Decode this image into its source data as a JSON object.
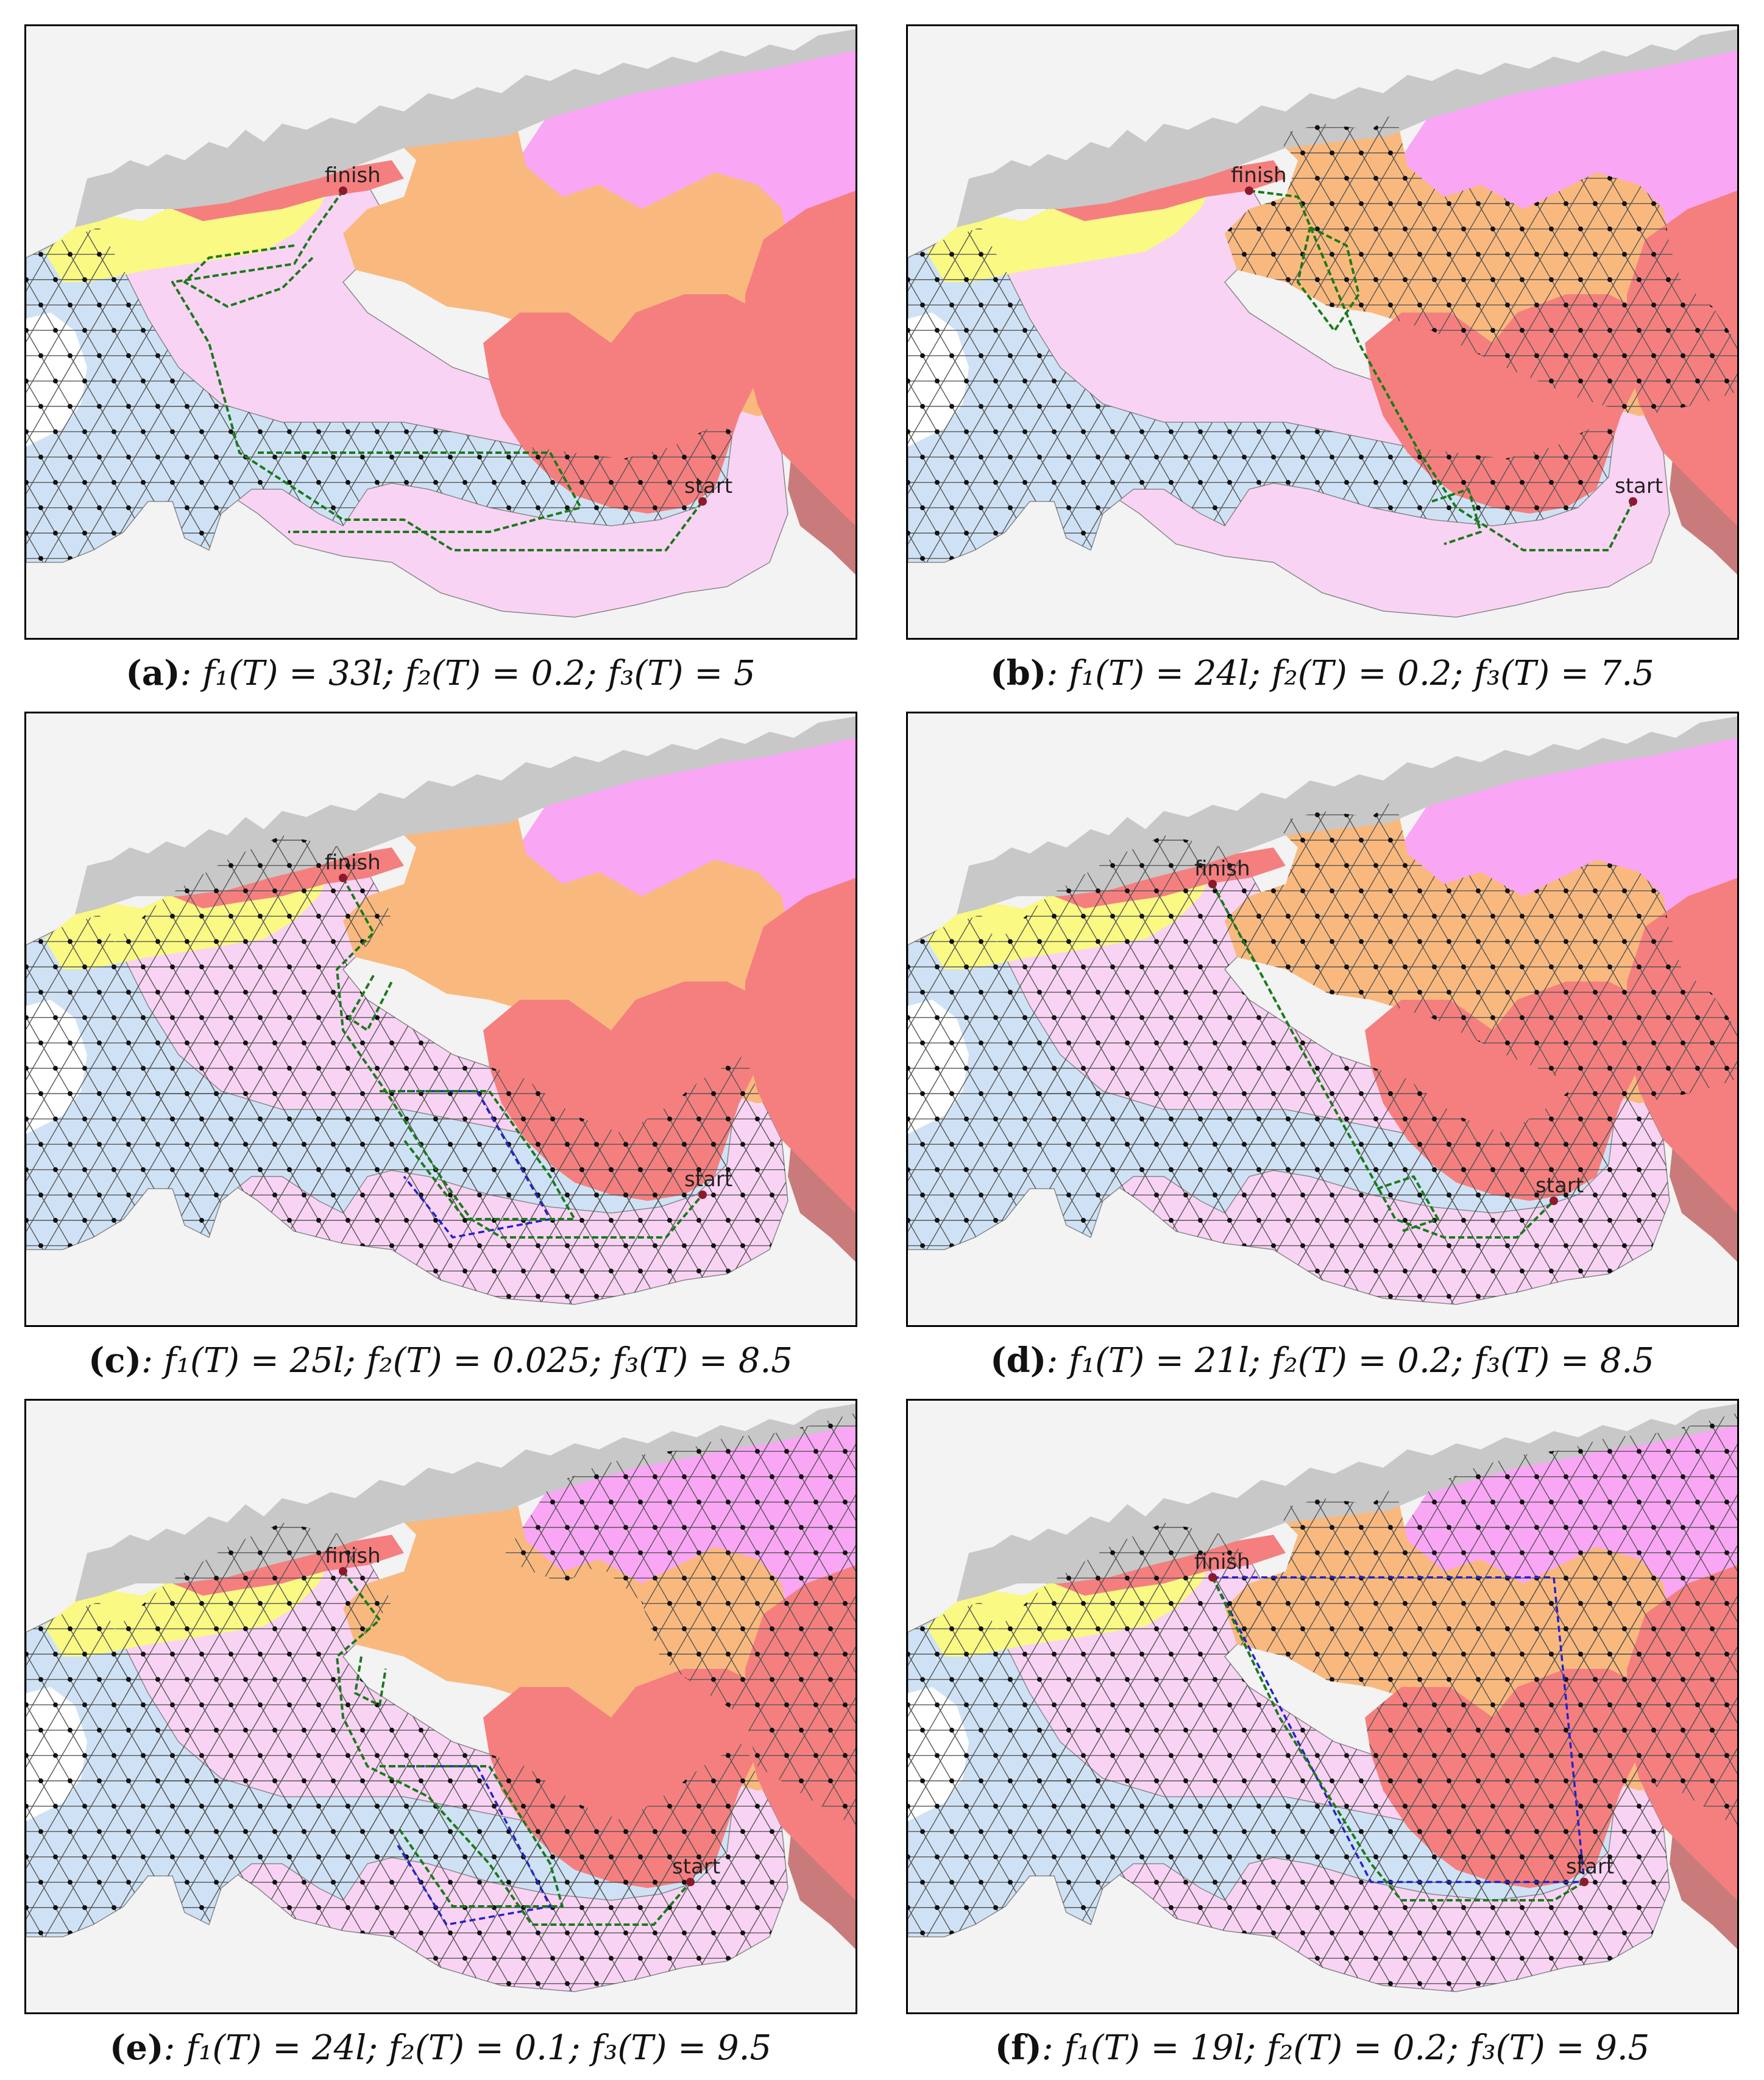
{
  "panels": [
    {
      "id": "a",
      "caption_label": "(a)",
      "caption_text": ": f₁(T) = 33l; f₂(T) = 0.2; f₃(T) = 5",
      "start_label": "start",
      "finish_label": "finish",
      "grid_regions": [
        "blue"
      ],
      "highlight": "none"
    },
    {
      "id": "b",
      "caption_label": "(b)",
      "caption_text": ": f₁(T) = 24l; f₂(T) = 0.2; f₃(T) = 7.5",
      "start_label": "start",
      "finish_label": "finish",
      "grid_regions": [
        "blue",
        "orange"
      ],
      "highlight": "none"
    },
    {
      "id": "c",
      "caption_label": "(c)",
      "caption_text": ": f₁(T) = 25l; f₂(T) = 0.025; f₃(T) = 8.5",
      "start_label": "start",
      "finish_label": "finish",
      "grid_regions": [
        "blue",
        "lightpink"
      ],
      "highlight": "none"
    },
    {
      "id": "d",
      "caption_label": "(d)",
      "caption_text": ": f₁(T) = 21l; f₂(T) = 0.2; f₃(T) = 8.5",
      "start_label": "start",
      "finish_label": "finish",
      "grid_regions": [
        "blue",
        "lightpink",
        "orange"
      ],
      "highlight": "none"
    },
    {
      "id": "e",
      "caption_label": "(e)",
      "caption_text": ": f₁(T) = 24l; f₂(T) = 0.1; f₃(T) = 9.5",
      "start_label": "start",
      "finish_label": "finish",
      "grid_regions": [
        "blue",
        "lightpink",
        "magenta"
      ],
      "highlight": "none"
    },
    {
      "id": "f",
      "caption_label": "(f)",
      "caption_text": ": f₁(T) = 19l; f₂(T) = 0.2; f₃(T) = 9.5",
      "start_label": "start",
      "finish_label": "finish",
      "grid_regions": [
        "blue",
        "lightpink",
        "orange",
        "magenta",
        "red"
      ],
      "highlight": "red"
    }
  ],
  "colors": {
    "background": "#f3f3f3",
    "land": "#c8c8c8",
    "blue": "#cfe2f5",
    "lightpink": "#f9d3f4",
    "magenta": "#f9a6f5",
    "orange": "#f9b97e",
    "red": "#f57f7f",
    "darkred": "#c97b7b",
    "yellow": "#f9f984",
    "route_green": "#1a7a1a",
    "route_blue": "#2222cc"
  }
}
